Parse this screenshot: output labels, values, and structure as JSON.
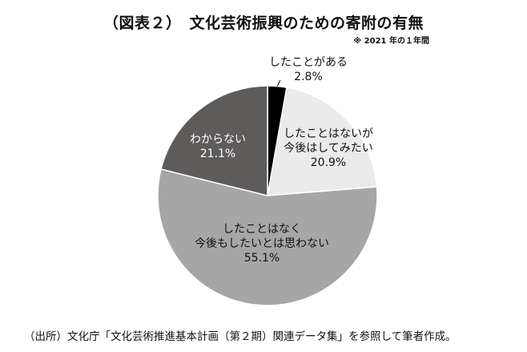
{
  "header": {
    "title": "（図表２）　文化芸術振興のための寄附の有無",
    "note": "※ 2021 年の１年間"
  },
  "source": "（出所）文化庁「文化芸術推進基本計画（第２期）関連データ集」を参照して筆者作成。",
  "chart_data": {
    "type": "pie",
    "title": "（図表２）　文化芸術振興のための寄附の有無",
    "start": "12 o'clock",
    "direction": "clockwise",
    "slices": [
      {
        "label_lines": [
          "したことがある"
        ],
        "value": 2.8,
        "value_label": "2.8%",
        "color": "#000000",
        "text_color": "#111111"
      },
      {
        "label_lines": [
          "したことはないが",
          "今後はしてみたい"
        ],
        "value": 20.9,
        "value_label": "20.9%",
        "color": "#ebebeb",
        "text_color": "#111111"
      },
      {
        "label_lines": [
          "したことはなく",
          "今後もしたいとは思わない"
        ],
        "value": 55.1,
        "value_label": "55.1%",
        "color": "#a6a6a6",
        "text_color": "#111111"
      },
      {
        "label_lines": [
          "わからない"
        ],
        "value": 21.1,
        "value_label": "21.1%",
        "color": "#5e5b5b",
        "text_color": "#ffffff"
      }
    ]
  }
}
